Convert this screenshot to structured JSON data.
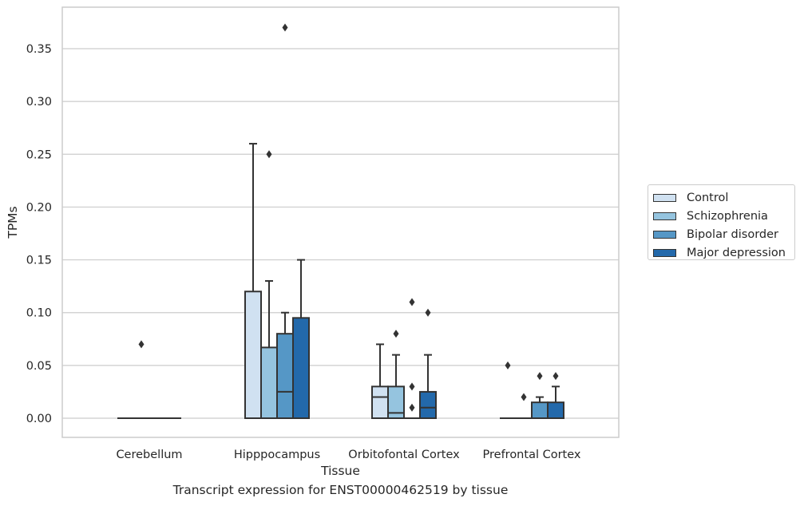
{
  "chart_data": {
    "type": "box",
    "title": "",
    "caption": "Transcript expression for ENST00000462519 by tissue",
    "xlabel": "Tissue",
    "ylabel": "TPMs",
    "ylim": [
      -0.018,
      0.39
    ],
    "yticks": [
      0.0,
      0.05,
      0.1,
      0.15,
      0.2,
      0.25,
      0.3,
      0.35
    ],
    "ytick_labels": [
      "0.00",
      "0.05",
      "0.10",
      "0.15",
      "0.20",
      "0.25",
      "0.30",
      "0.35"
    ],
    "grid": "horizontal",
    "legend_position": "right",
    "categories": [
      "Cerebellum",
      "Hipppocampus",
      "Orbitofontal Cortex",
      "Prefrontal Cortex"
    ],
    "series": [
      {
        "name": "Control",
        "color": "#d0e1f1",
        "boxes": [
          {
            "q1": 0.0,
            "median": 0.0,
            "q3": 0.0,
            "whisker_low": 0.0,
            "whisker_high": 0.0,
            "outliers": []
          },
          {
            "q1": 0.0,
            "median": 0.0,
            "q3": 0.12,
            "whisker_low": 0.0,
            "whisker_high": 0.26,
            "outliers": []
          },
          {
            "q1": 0.0,
            "median": 0.02,
            "q3": 0.03,
            "whisker_low": 0.0,
            "whisker_high": 0.07,
            "outliers": []
          },
          {
            "q1": 0.0,
            "median": 0.0,
            "q3": 0.0,
            "whisker_low": 0.0,
            "whisker_high": 0.0,
            "outliers": [
              0.05
            ]
          }
        ]
      },
      {
        "name": "Schizophrenia",
        "color": "#95c4df",
        "boxes": [
          {
            "q1": 0.0,
            "median": 0.0,
            "q3": 0.0,
            "whisker_low": 0.0,
            "whisker_high": 0.0,
            "outliers": [
              0.07
            ]
          },
          {
            "q1": 0.0,
            "median": 0.0,
            "q3": 0.067,
            "whisker_low": 0.0,
            "whisker_high": 0.13,
            "outliers": [
              0.25
            ]
          },
          {
            "q1": 0.0,
            "median": 0.005,
            "q3": 0.03,
            "whisker_low": 0.0,
            "whisker_high": 0.06,
            "outliers": [
              0.08
            ]
          },
          {
            "q1": 0.0,
            "median": 0.0,
            "q3": 0.0,
            "whisker_low": 0.0,
            "whisker_high": 0.0,
            "outliers": [
              0.02
            ]
          }
        ]
      },
      {
        "name": "Bipolar disorder",
        "color": "#5597c6",
        "boxes": [
          {
            "q1": 0.0,
            "median": 0.0,
            "q3": 0.0,
            "whisker_low": 0.0,
            "whisker_high": 0.0,
            "outliers": []
          },
          {
            "q1": 0.0,
            "median": 0.025,
            "q3": 0.08,
            "whisker_low": 0.0,
            "whisker_high": 0.1,
            "outliers": [
              0.37
            ]
          },
          {
            "q1": 0.0,
            "median": 0.0,
            "q3": 0.0,
            "whisker_low": 0.0,
            "whisker_high": 0.0,
            "outliers": [
              0.11,
              0.03,
              0.01
            ]
          },
          {
            "q1": 0.0,
            "median": 0.0,
            "q3": 0.015,
            "whisker_low": 0.0,
            "whisker_high": 0.02,
            "outliers": [
              0.04
            ]
          }
        ]
      },
      {
        "name": "Major depression",
        "color": "#2369ab",
        "boxes": [
          {
            "q1": 0.0,
            "median": 0.0,
            "q3": 0.0,
            "whisker_low": 0.0,
            "whisker_high": 0.0,
            "outliers": []
          },
          {
            "q1": 0.0,
            "median": 0.0,
            "q3": 0.095,
            "whisker_low": 0.0,
            "whisker_high": 0.15,
            "outliers": []
          },
          {
            "q1": 0.0,
            "median": 0.01,
            "q3": 0.025,
            "whisker_low": 0.0,
            "whisker_high": 0.06,
            "outliers": [
              0.1
            ]
          },
          {
            "q1": 0.0,
            "median": 0.0,
            "q3": 0.015,
            "whisker_low": 0.0,
            "whisker_high": 0.03,
            "outliers": [
              0.04
            ]
          }
        ]
      }
    ]
  }
}
